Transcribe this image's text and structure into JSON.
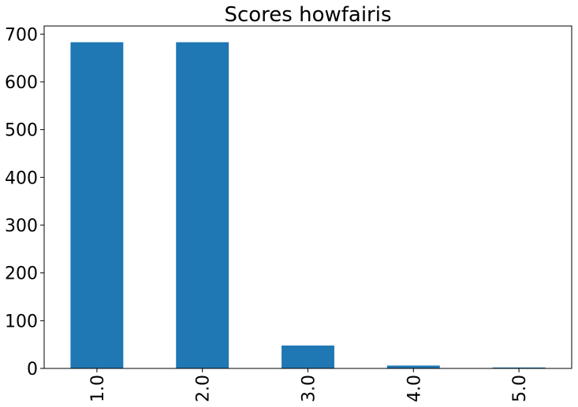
{
  "chart_data": {
    "type": "bar",
    "title": "Scores howfairis",
    "xlabel": "",
    "ylabel": "",
    "categories": [
      "1.0",
      "2.0",
      "3.0",
      "4.0",
      "5.0"
    ],
    "values": [
      683,
      683,
      48,
      6,
      2
    ],
    "ylim": [
      0,
      717
    ],
    "yticks": [
      0,
      100,
      200,
      300,
      400,
      500,
      600,
      700
    ],
    "ytick_labels": [
      "0",
      "100",
      "200",
      "300",
      "400",
      "500",
      "600",
      "700"
    ],
    "bar_color": "#1f77b4",
    "grid": false,
    "legend": "none"
  }
}
